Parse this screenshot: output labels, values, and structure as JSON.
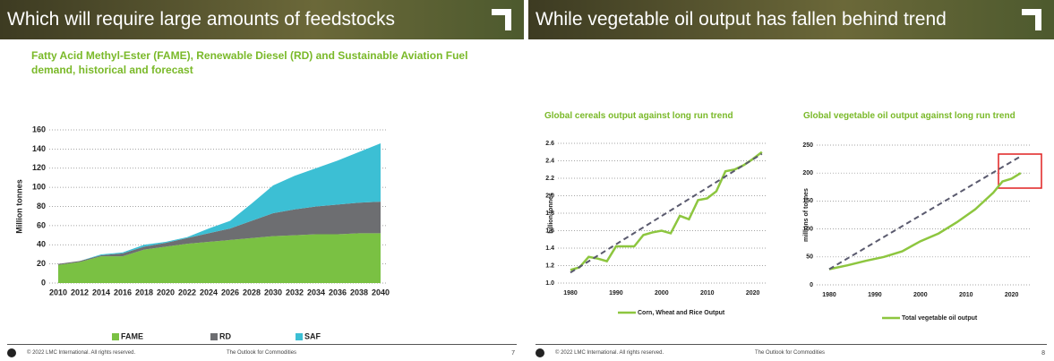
{
  "slides": [
    {
      "title": "Which will require large amounts of feedstocks",
      "copyright": "© 2022 LMC International. All rights reserved.",
      "footer": "The Outlook for Commodities",
      "page": "7"
    },
    {
      "title": "While vegetable oil output has fallen behind trend",
      "copyright": "© 2022 LMC International. All rights reserved.",
      "footer": "The Outlook for Commodities",
      "page": "8"
    }
  ],
  "chart_data": [
    {
      "type": "stacked-area",
      "title": "Fatty Acid Methyl-Ester (FAME), Renewable Diesel (RD) and Sustainable Aviation Fuel demand, historical and forecast",
      "y_label": "Million tonnes",
      "x": [
        2010,
        2012,
        2014,
        2016,
        2018,
        2020,
        2022,
        2024,
        2026,
        2028,
        2030,
        2032,
        2034,
        2036,
        2038,
        2040
      ],
      "xlim": [
        2010,
        2040
      ],
      "xticks": [
        2010,
        2012,
        2014,
        2016,
        2018,
        2020,
        2022,
        2024,
        2026,
        2028,
        2030,
        2032,
        2034,
        2036,
        2038,
        2040
      ],
      "ylim": [
        0,
        160
      ],
      "yticks": [
        0,
        20,
        40,
        60,
        80,
        100,
        120,
        140,
        160
      ],
      "grid": true,
      "series": [
        {
          "name": "FAME",
          "color": "#7ac143",
          "values": [
            19,
            22,
            28,
            28,
            35,
            38,
            41,
            43,
            45,
            47,
            49,
            50,
            51,
            51,
            52,
            52
          ]
        },
        {
          "name": "RD",
          "color": "#6d6e71",
          "values": [
            1,
            1,
            1,
            3,
            3,
            4,
            6,
            9,
            12,
            18,
            24,
            27,
            29,
            31,
            32,
            33
          ]
        },
        {
          "name": "SAF",
          "color": "#3cbfd4",
          "values": [
            0,
            0,
            1,
            1,
            2,
            1,
            1,
            5,
            8,
            18,
            29,
            35,
            40,
            46,
            53,
            61
          ]
        }
      ]
    },
    {
      "type": "line",
      "title": "Global cereals output against long run trend",
      "y_label": "billion tonnes",
      "x": [
        1980,
        1982,
        1984,
        1986,
        1988,
        1990,
        1992,
        1994,
        1996,
        1998,
        2000,
        2002,
        2004,
        2006,
        2008,
        2010,
        2012,
        2014,
        2016,
        2018,
        2020,
        2022
      ],
      "xlim": [
        1980,
        2024
      ],
      "xticks": [
        1980,
        1990,
        2000,
        2010,
        2020
      ],
      "ylim": [
        1,
        2.6
      ],
      "yticks": [
        {
          "value": 1,
          "label": "1.0"
        },
        1.2,
        1.4,
        1.6,
        1.8,
        {
          "value": 2,
          "label": "2.0"
        },
        2.2,
        2.4,
        2.6
      ],
      "grid": true,
      "series": [
        {
          "name": "Corn, Wheat and Rice Output",
          "color": "#8dc63f",
          "values": [
            1.15,
            1.18,
            1.3,
            1.28,
            1.25,
            1.42,
            1.42,
            1.42,
            1.55,
            1.58,
            1.6,
            1.57,
            1.77,
            1.73,
            1.95,
            1.97,
            2.05,
            2.28,
            2.3,
            2.35,
            2.42,
            2.5
          ]
        }
      ],
      "trend": {
        "x": [
          1980,
          2022
        ],
        "values": [
          1.12,
          2.48
        ],
        "color": "#5a5a6e"
      }
    },
    {
      "type": "line",
      "title": "Global vegetable oil output against long run trend",
      "y_label": "millions of tonnes",
      "x": [
        1980,
        1984,
        1988,
        1992,
        1996,
        2000,
        2004,
        2008,
        2012,
        2016,
        2018,
        2020,
        2022
      ],
      "xlim": [
        1980,
        2024
      ],
      "xticks": [
        1980,
        1990,
        2000,
        2010,
        2020
      ],
      "ylim": [
        0,
        250
      ],
      "yticks": [
        0,
        50,
        100,
        150,
        200,
        250
      ],
      "grid": true,
      "series": [
        {
          "name": "Total vegetable oil output",
          "color": "#8dc63f",
          "values": [
            28,
            35,
            43,
            50,
            60,
            78,
            92,
            112,
            135,
            165,
            185,
            190,
            200
          ]
        }
      ],
      "trend": {
        "x": [
          1980,
          2022
        ],
        "values": [
          28,
          230
        ],
        "color": "#5a5a6e"
      }
    }
  ]
}
